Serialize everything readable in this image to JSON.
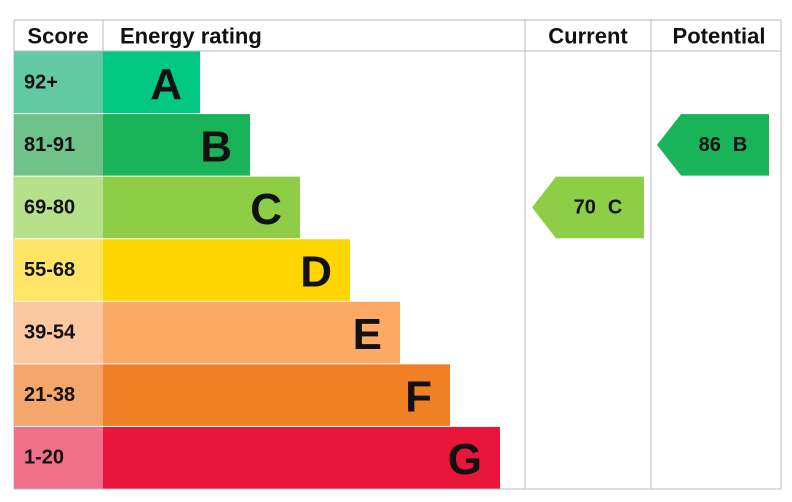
{
  "chart_data": {
    "type": "epc",
    "headers": {
      "score": "Score",
      "rating": "Energy rating",
      "current": "Current",
      "potential": "Potential"
    },
    "bands": [
      {
        "score": "92+",
        "letter": "A",
        "color": "#00c781",
        "score_color": "#63c9a5"
      },
      {
        "score": "81-91",
        "letter": "B",
        "color": "#19b459",
        "score_color": "#6fc388"
      },
      {
        "score": "69-80",
        "letter": "C",
        "color": "#8dce46",
        "score_color": "#b6e08a"
      },
      {
        "score": "55-68",
        "letter": "D",
        "color": "#ffd500",
        "score_color": "#ffe466"
      },
      {
        "score": "39-54",
        "letter": "E",
        "color": "#fcaa65",
        "score_color": "#fdc89f"
      },
      {
        "score": "21-38",
        "letter": "F",
        "color": "#ef8023",
        "score_color": "#f4a66b"
      },
      {
        "score": "1-20",
        "letter": "G",
        "color": "#e9153b",
        "score_color": "#f07089"
      }
    ],
    "current": {
      "value": 70,
      "letter": "C"
    },
    "potential": {
      "value": 86,
      "letter": "B"
    }
  }
}
